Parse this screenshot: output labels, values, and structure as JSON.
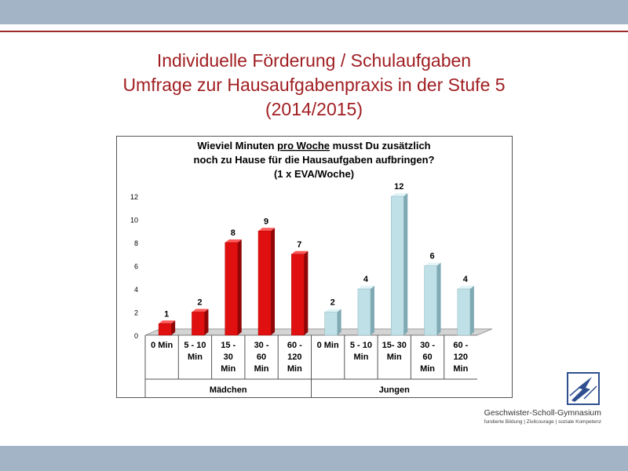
{
  "slide": {
    "title_line1": "Individuelle Förderung / Schulaufgaben",
    "title_line2": "Umfrage zur Hausaufgabenpraxis in der Stufe 5",
    "title_line3": "(2014/2015)"
  },
  "school": {
    "name": "Geschwister-Scholl-Gymnasium",
    "tagline": "fundierte Bildung | Zivilcourage | soziale Kompetenz"
  },
  "colors": {
    "accent": "#a01e22",
    "band": "#a3b4c6",
    "girls_bar": "#e01010",
    "boys_bar": "#bfe0e6"
  },
  "chart_data": {
    "type": "bar",
    "title_lines": [
      "Wieviel Minuten pro Woche musst Du zusätzlich",
      "noch zu Hause für die Hausaufgaben aufbringen?",
      "(1 x EVA/Woche)"
    ],
    "title_underlined": "pro Woche",
    "ylim": [
      0,
      12
    ],
    "yticks": [
      0,
      2,
      4,
      6,
      8,
      10,
      12
    ],
    "grid": false,
    "legend": "none",
    "groups": [
      {
        "name": "Mädchen",
        "categories": [
          [
            "0 Min"
          ],
          [
            "5 - 10",
            "Min"
          ],
          [
            "15 -",
            "30",
            "Min"
          ],
          [
            "30 -",
            "60",
            "Min"
          ],
          [
            "60 -",
            "120",
            "Min"
          ]
        ],
        "values": [
          1,
          2,
          8,
          9,
          7
        ]
      },
      {
        "name": "Jungen",
        "categories": [
          [
            "0 Min"
          ],
          [
            "5 - 10",
            "Min"
          ],
          [
            "15- 30",
            "Min"
          ],
          [
            "30 -",
            "60",
            "Min"
          ],
          [
            "60 -",
            "120",
            "Min"
          ]
        ],
        "values": [
          2,
          4,
          12,
          6,
          4
        ]
      }
    ]
  }
}
